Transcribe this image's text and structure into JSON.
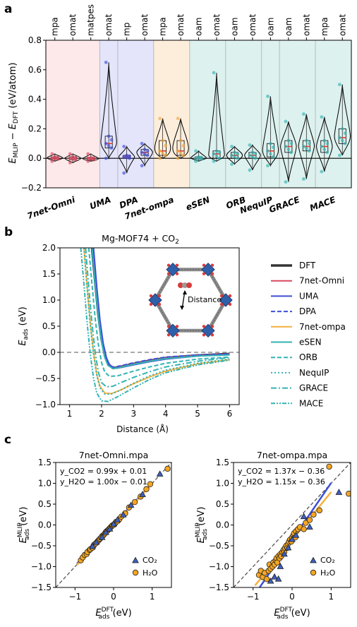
{
  "panels": {
    "a": "a",
    "b": "b",
    "c": "c"
  },
  "chart_data": [
    {
      "type": "violin",
      "ylabel": "E_MLIP − E_DFT (eV/atom)",
      "ylim": [
        -0.2,
        0.8
      ],
      "yticks": [
        "0.8",
        "0.6",
        "0.4",
        "0.2",
        "0.0",
        "−0.2"
      ],
      "top_labels": [
        "mpa",
        "omat",
        "matpes",
        "omat",
        "mp",
        "omat",
        "mpa",
        "omat",
        "oam",
        "omat",
        "oam",
        "omat",
        "oam",
        "oam",
        "omat",
        "mpa",
        "omat"
      ],
      "groups": [
        {
          "name": "7net-Omni",
          "start": 0,
          "count": 3,
          "color": "#fde9ea"
        },
        {
          "name": "UMA",
          "start": 3,
          "count": 1,
          "color": "#e4e4fb"
        },
        {
          "name": "DPA",
          "start": 4,
          "count": 2,
          "color": "#e4e4fb"
        },
        {
          "name": "7net-ompa",
          "start": 6,
          "count": 2,
          "color": "#fdeedc"
        },
        {
          "name": "eSEN",
          "start": 8,
          "count": 2,
          "color": "#ddf1ee"
        },
        {
          "name": "ORB",
          "start": 10,
          "count": 2,
          "color": "#ddf1ee"
        },
        {
          "name": "NequIP",
          "start": 12,
          "count": 1,
          "color": "#ddf1ee"
        },
        {
          "name": "GRACE",
          "start": 13,
          "count": 2,
          "color": "#ddf1ee"
        },
        {
          "name": "MACE",
          "start": 15,
          "count": 2,
          "color": "#ddf1ee"
        }
      ],
      "violins": [
        {
          "median": 0.0,
          "q1": -0.005,
          "q3": 0.01,
          "min": -0.02,
          "max": 0.03,
          "color": "#d9485f"
        },
        {
          "median": 0.0,
          "q1": -0.01,
          "q3": 0.01,
          "min": -0.03,
          "max": 0.03,
          "color": "#d9485f"
        },
        {
          "median": 0.0,
          "q1": -0.01,
          "q3": 0.005,
          "min": -0.02,
          "max": 0.03,
          "color": "#d9485f"
        },
        {
          "median": 0.1,
          "q1": 0.07,
          "q3": 0.15,
          "min": 0.0,
          "max": 0.65,
          "color": "#3d4fd8"
        },
        {
          "median": 0.01,
          "q1": 0.0,
          "q3": 0.02,
          "min": -0.1,
          "max": 0.08,
          "color": "#3d4fd8"
        },
        {
          "median": 0.04,
          "q1": 0.02,
          "q3": 0.06,
          "min": -0.05,
          "max": 0.1,
          "color": "#3d4fd8"
        },
        {
          "median": 0.05,
          "q1": 0.02,
          "q3": 0.12,
          "min": 0.0,
          "max": 0.27,
          "color": "#f5a742"
        },
        {
          "median": 0.05,
          "q1": 0.02,
          "q3": 0.12,
          "min": 0.0,
          "max": 0.27,
          "color": "#f5a742"
        },
        {
          "median": 0.0,
          "q1": -0.005,
          "q3": 0.01,
          "min": -0.02,
          "max": 0.05,
          "color": "#33b3b3"
        },
        {
          "median": 0.03,
          "q1": 0.0,
          "q3": 0.05,
          "min": -0.02,
          "max": 0.58,
          "color": "#33b3b3"
        },
        {
          "median": 0.02,
          "q1": 0.0,
          "q3": 0.04,
          "min": -0.04,
          "max": 0.08,
          "color": "#33b3b3"
        },
        {
          "median": 0.02,
          "q1": 0.0,
          "q3": 0.04,
          "min": -0.08,
          "max": 0.09,
          "color": "#33b3b3"
        },
        {
          "median": 0.05,
          "q1": 0.01,
          "q3": 0.1,
          "min": -0.05,
          "max": 0.42,
          "color": "#33b3b3"
        },
        {
          "median": 0.08,
          "q1": 0.04,
          "q3": 0.12,
          "min": -0.16,
          "max": 0.25,
          "color": "#33b3b3"
        },
        {
          "median": 0.08,
          "q1": 0.05,
          "q3": 0.12,
          "min": -0.14,
          "max": 0.3,
          "color": "#33b3b3"
        },
        {
          "median": 0.08,
          "q1": 0.04,
          "q3": 0.12,
          "min": -0.09,
          "max": 0.28,
          "color": "#33b3b3"
        },
        {
          "median": 0.14,
          "q1": 0.1,
          "q3": 0.2,
          "min": 0.02,
          "max": 0.5,
          "color": "#33b3b3"
        }
      ]
    },
    {
      "type": "line",
      "title": "Mg-MOF74 + CO₂",
      "xlabel": "Distance (Å)",
      "ylabel": "E_ads (eV)",
      "xlim": [
        0.7,
        6.3
      ],
      "ylim": [
        -1.0,
        2.0
      ],
      "xticks": [
        "1",
        "2",
        "3",
        "4",
        "5",
        "6"
      ],
      "yticks": [
        "2.0",
        "1.5",
        "1.0",
        "0.5",
        "0.0",
        "−0.5",
        "−1.0"
      ],
      "annotation": "Distance",
      "series": [
        {
          "name": "DFT",
          "color": "#333333",
          "dash": "",
          "width": 3.5,
          "x": [
            1.7,
            1.8,
            1.9,
            2.0,
            2.1,
            2.2,
            2.35,
            2.5,
            3.0,
            3.5,
            4.0,
            5.0,
            6.0
          ],
          "y": [
            2.0,
            1.35,
            0.72,
            0.25,
            -0.05,
            -0.22,
            -0.3,
            -0.29,
            -0.22,
            -0.16,
            -0.11,
            -0.06,
            -0.03
          ]
        },
        {
          "name": "7net-Omni",
          "color": "#d9485f",
          "dash": "",
          "width": 2,
          "x": [
            1.7,
            1.8,
            1.9,
            2.0,
            2.1,
            2.2,
            2.35,
            2.5,
            3.0,
            3.5,
            4.0,
            5.0,
            6.0
          ],
          "y": [
            2.0,
            1.4,
            0.78,
            0.3,
            -0.02,
            -0.2,
            -0.29,
            -0.29,
            -0.22,
            -0.16,
            -0.11,
            -0.06,
            -0.03
          ]
        },
        {
          "name": "UMA",
          "color": "#3d4fd8",
          "dash": "",
          "width": 2,
          "x": [
            1.75,
            1.85,
            1.95,
            2.05,
            2.15,
            2.25,
            2.4,
            2.6,
            3.0,
            3.5,
            4.0,
            5.0,
            6.0
          ],
          "y": [
            2.0,
            1.25,
            0.62,
            0.18,
            -0.1,
            -0.24,
            -0.3,
            -0.29,
            -0.24,
            -0.18,
            -0.13,
            -0.07,
            -0.04
          ]
        },
        {
          "name": "DPA",
          "color": "#3d4fd8",
          "dash": "6,3",
          "width": 2,
          "x": [
            1.7,
            1.8,
            1.9,
            2.0,
            2.1,
            2.2,
            2.35,
            2.5,
            3.0,
            3.5,
            4.0,
            5.0,
            6.0
          ],
          "y": [
            2.0,
            1.3,
            0.7,
            0.22,
            -0.08,
            -0.22,
            -0.28,
            -0.27,
            -0.2,
            -0.14,
            -0.09,
            -0.05,
            -0.03
          ]
        },
        {
          "name": "7net-ompa",
          "color": "#f5b041",
          "dash": "",
          "width": 2,
          "x": [
            1.45,
            1.55,
            1.65,
            1.75,
            1.85,
            1.95,
            2.1,
            2.3,
            2.6,
            3.0,
            3.5,
            4.0,
            5.0,
            6.0
          ],
          "y": [
            2.0,
            1.25,
            0.55,
            0.0,
            -0.42,
            -0.65,
            -0.78,
            -0.79,
            -0.72,
            -0.6,
            -0.47,
            -0.36,
            -0.22,
            -0.14
          ]
        },
        {
          "name": "eSEN",
          "color": "#33b3b3",
          "dash": "",
          "width": 2,
          "x": [
            1.7,
            1.8,
            1.9,
            2.0,
            2.1,
            2.2,
            2.35,
            2.5,
            3.0,
            3.5,
            4.0,
            5.0,
            6.0
          ],
          "y": [
            2.0,
            1.3,
            0.68,
            0.2,
            -0.1,
            -0.25,
            -0.31,
            -0.3,
            -0.23,
            -0.17,
            -0.12,
            -0.07,
            -0.05
          ]
        },
        {
          "name": "ORB",
          "color": "#33b3b3",
          "dash": "6,3",
          "width": 2,
          "x": [
            1.6,
            1.7,
            1.8,
            1.9,
            2.0,
            2.1,
            2.25,
            2.5,
            3.0,
            3.5,
            4.0,
            5.0,
            6.0
          ],
          "y": [
            2.0,
            1.3,
            0.65,
            0.15,
            -0.2,
            -0.38,
            -0.46,
            -0.45,
            -0.36,
            -0.28,
            -0.21,
            -0.13,
            -0.09
          ]
        },
        {
          "name": "NequIP",
          "color": "#33b3b3",
          "dash": "2,3",
          "width": 2,
          "x": [
            1.45,
            1.55,
            1.65,
            1.75,
            1.85,
            1.95,
            2.1,
            2.3,
            2.6,
            3.0,
            3.5,
            4.0,
            5.0,
            6.0
          ],
          "y": [
            2.0,
            1.2,
            0.5,
            -0.05,
            -0.45,
            -0.68,
            -0.8,
            -0.8,
            -0.72,
            -0.59,
            -0.45,
            -0.34,
            -0.21,
            -0.13
          ]
        },
        {
          "name": "GRACE",
          "color": "#33b3b3",
          "dash": "8,3,2,3",
          "width": 2,
          "x": [
            1.5,
            1.6,
            1.7,
            1.8,
            1.9,
            2.0,
            2.15,
            2.35,
            2.6,
            3.0,
            3.5,
            4.0,
            5.0,
            6.0
          ],
          "y": [
            2.0,
            1.25,
            0.55,
            0.0,
            -0.38,
            -0.58,
            -0.66,
            -0.65,
            -0.58,
            -0.48,
            -0.37,
            -0.28,
            -0.17,
            -0.1
          ]
        },
        {
          "name": "MACE",
          "color": "#33b3b3",
          "dash": "6,2,2,2,2,2",
          "width": 2,
          "x": [
            1.35,
            1.45,
            1.55,
            1.65,
            1.75,
            1.85,
            2.0,
            2.2,
            2.5,
            3.0,
            3.5,
            4.0,
            5.0,
            6.0
          ],
          "y": [
            2.0,
            1.3,
            0.55,
            -0.05,
            -0.5,
            -0.78,
            -0.93,
            -0.94,
            -0.85,
            -0.68,
            -0.52,
            -0.39,
            -0.24,
            -0.15
          ]
        }
      ]
    },
    {
      "type": "scatter",
      "title": "7net-Omni.mpa",
      "xlabel": "E_ads^DFT (eV)",
      "ylabel": "E_ads^MLIP (eV)",
      "xlim": [
        -1.5,
        1.5
      ],
      "ylim": [
        -1.5,
        1.5
      ],
      "ticks": [
        "−1.5",
        "−1.0",
        "−0.5",
        "0.0",
        "0.5",
        "1.0",
        "1.5"
      ],
      "xticks": [
        "−1",
        "0",
        "1"
      ],
      "fit_co2": "y_CO2 = 0.99x + 0.01",
      "fit_h2o": "y_H2O = 1.00x − 0.01",
      "legend": [
        "CO₂",
        "H₂O"
      ],
      "fits": [
        {
          "slope": 0.99,
          "intercept": 0.01,
          "color": "#3d4fd8"
        },
        {
          "slope": 1.0,
          "intercept": -0.01,
          "color": "#f5b041"
        }
      ],
      "co2": [
        [
          -0.55,
          -0.52
        ],
        [
          -0.45,
          -0.42
        ],
        [
          -0.3,
          -0.3
        ],
        [
          -0.2,
          -0.18
        ],
        [
          -0.1,
          -0.1
        ],
        [
          0.0,
          0.02
        ],
        [
          0.1,
          0.12
        ],
        [
          0.25,
          0.24
        ],
        [
          0.45,
          0.47
        ],
        [
          0.75,
          0.73
        ],
        [
          1.2,
          1.22
        ]
      ],
      "h2o": [
        [
          -0.85,
          -0.85
        ],
        [
          -0.8,
          -0.78
        ],
        [
          -0.75,
          -0.72
        ],
        [
          -0.7,
          -0.7
        ],
        [
          -0.68,
          -0.65
        ],
        [
          -0.62,
          -0.6
        ],
        [
          -0.6,
          -0.58
        ],
        [
          -0.55,
          -0.55
        ],
        [
          -0.52,
          -0.5
        ],
        [
          -0.5,
          -0.47
        ],
        [
          -0.46,
          -0.44
        ],
        [
          -0.42,
          -0.4
        ],
        [
          -0.4,
          -0.38
        ],
        [
          -0.37,
          -0.35
        ],
        [
          -0.35,
          -0.33
        ],
        [
          -0.32,
          -0.3
        ],
        [
          -0.3,
          -0.27
        ],
        [
          -0.27,
          -0.25
        ],
        [
          -0.25,
          -0.23
        ],
        [
          -0.22,
          -0.2
        ],
        [
          -0.2,
          -0.17
        ],
        [
          -0.18,
          -0.15
        ],
        [
          -0.15,
          -0.13
        ],
        [
          -0.12,
          -0.1
        ],
        [
          -0.1,
          -0.08
        ],
        [
          -0.08,
          -0.06
        ],
        [
          -0.05,
          -0.03
        ],
        [
          -0.03,
          -0.01
        ],
        [
          0.0,
          0.0
        ],
        [
          0.03,
          0.03
        ],
        [
          0.06,
          0.07
        ],
        [
          0.1,
          0.09
        ],
        [
          0.15,
          0.14
        ],
        [
          0.2,
          0.2
        ],
        [
          0.3,
          0.28
        ],
        [
          0.4,
          0.42
        ],
        [
          0.55,
          0.55
        ],
        [
          0.7,
          0.68
        ],
        [
          0.85,
          0.86
        ],
        [
          0.95,
          0.98
        ],
        [
          1.4,
          1.35
        ]
      ]
    },
    {
      "type": "scatter",
      "title": "7net-ompa.mpa",
      "xlabel": "E_ads^DFT (eV)",
      "ylabel": "E_ads^MLIP (eV)",
      "xlim": [
        -1.5,
        1.5
      ],
      "ylim": [
        -1.5,
        1.5
      ],
      "ticks": [
        "−1.5",
        "−1.0",
        "−0.5",
        "0.0",
        "0.5",
        "1.0",
        "1.5"
      ],
      "xticks": [
        "−1",
        "0",
        "1"
      ],
      "fit_co2": "y_CO2 = 1.37x − 0.36",
      "fit_h2o": "y_H2O = 1.15x − 0.36",
      "legend": [
        "CO₂",
        "H₂O"
      ],
      "fits": [
        {
          "slope": 1.37,
          "intercept": -0.36,
          "color": "#3d4fd8"
        },
        {
          "slope": 1.15,
          "intercept": -0.36,
          "color": "#f5b041"
        }
      ],
      "co2": [
        [
          -0.55,
          -1.35
        ],
        [
          -0.45,
          -1.25
        ],
        [
          -0.35,
          -1.3
        ],
        [
          -0.3,
          -1.0
        ],
        [
          -0.2,
          -0.7
        ],
        [
          -0.1,
          -0.55
        ],
        [
          0.0,
          -0.35
        ],
        [
          0.1,
          -0.25
        ],
        [
          0.3,
          0.2
        ],
        [
          0.45,
          -0.05
        ],
        [
          1.2,
          0.78
        ]
      ],
      "h2o": [
        [
          -0.85,
          -1.2
        ],
        [
          -0.8,
          -1.1
        ],
        [
          -0.75,
          -1.25
        ],
        [
          -0.7,
          -1.15
        ],
        [
          -0.65,
          -1.3
        ],
        [
          -0.6,
          -1.1
        ],
        [
          -0.58,
          -0.95
        ],
        [
          -0.55,
          -1.05
        ],
        [
          -0.5,
          -1.0
        ],
        [
          -0.48,
          -0.9
        ],
        [
          -0.45,
          -0.95
        ],
        [
          -0.42,
          -0.85
        ],
        [
          -0.4,
          -0.8
        ],
        [
          -0.38,
          -0.9
        ],
        [
          -0.35,
          -0.75
        ],
        [
          -0.32,
          -0.8
        ],
        [
          -0.3,
          -0.7
        ],
        [
          -0.28,
          -0.75
        ],
        [
          -0.25,
          -0.65
        ],
        [
          -0.22,
          -0.6
        ],
        [
          -0.2,
          -0.65
        ],
        [
          -0.18,
          -0.55
        ],
        [
          -0.15,
          -0.5
        ],
        [
          -0.12,
          -0.55
        ],
        [
          -0.1,
          -0.45
        ],
        [
          -0.08,
          -0.4
        ],
        [
          -0.05,
          -0.35
        ],
        [
          -0.02,
          -0.4
        ],
        [
          0.0,
          -0.3
        ],
        [
          0.03,
          -0.25
        ],
        [
          0.05,
          -0.2
        ],
        [
          0.08,
          -0.3
        ],
        [
          0.1,
          -0.15
        ],
        [
          0.15,
          -0.1
        ],
        [
          0.2,
          -0.05
        ],
        [
          0.3,
          -0.1
        ],
        [
          0.35,
          0.05
        ],
        [
          0.45,
          0.12
        ],
        [
          0.55,
          0.25
        ],
        [
          0.7,
          0.35
        ],
        [
          0.95,
          1.4
        ],
        [
          1.45,
          0.75
        ]
      ]
    }
  ]
}
